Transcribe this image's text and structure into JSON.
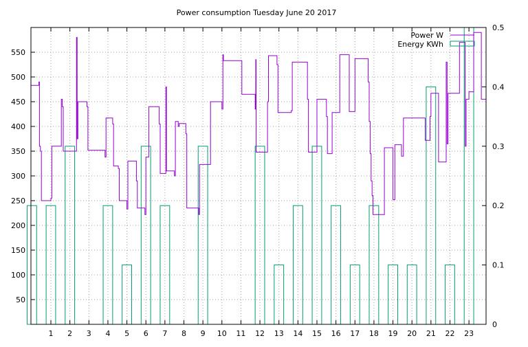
{
  "chart_data": {
    "type": "line",
    "title": "Power consumption Tuesday June 20 2017",
    "xlabel": "",
    "ylabel": "",
    "y2label": "",
    "xlim": [
      -0.05,
      23.9
    ],
    "ylim": [
      0,
      600
    ],
    "y2lim": [
      0,
      0.5
    ],
    "xticks": [
      1,
      2,
      3,
      4,
      5,
      6,
      7,
      8,
      9,
      10,
      11,
      12,
      13,
      14,
      15,
      16,
      17,
      18,
      19,
      20,
      21,
      22,
      23
    ],
    "yticks": [
      50,
      100,
      150,
      200,
      250,
      300,
      350,
      400,
      450,
      500,
      550
    ],
    "y2ticks": [
      0,
      0.1,
      0.2,
      0.3,
      0.4,
      0.5
    ],
    "y2tick_labels": [
      "0",
      "0.1",
      "0.2",
      "0.3",
      "0.4",
      "0.5"
    ],
    "grid": true,
    "legend_position": "top-right",
    "colors": {
      "power": "#9400d3",
      "energy": "#009e73"
    },
    "series": [
      {
        "name": "Power W",
        "axis": "left",
        "style": "steps",
        "points": [
          [
            -0.05,
            483
          ],
          [
            0.35,
            483
          ],
          [
            0.37,
            490
          ],
          [
            0.4,
            360
          ],
          [
            0.45,
            350
          ],
          [
            0.5,
            250
          ],
          [
            0.95,
            250
          ],
          [
            1.0,
            255
          ],
          [
            1.05,
            360
          ],
          [
            1.5,
            360
          ],
          [
            1.55,
            455
          ],
          [
            1.6,
            440
          ],
          [
            1.65,
            350
          ],
          [
            2.3,
            350
          ],
          [
            2.35,
            580
          ],
          [
            2.38,
            375
          ],
          [
            2.42,
            450
          ],
          [
            2.85,
            450
          ],
          [
            2.9,
            440
          ],
          [
            2.95,
            352
          ],
          [
            3.8,
            352
          ],
          [
            3.85,
            338
          ],
          [
            3.9,
            417
          ],
          [
            4.2,
            417
          ],
          [
            4.25,
            405
          ],
          [
            4.3,
            320
          ],
          [
            4.5,
            320
          ],
          [
            4.55,
            315
          ],
          [
            4.6,
            250
          ],
          [
            4.95,
            250
          ],
          [
            5.0,
            233
          ],
          [
            5.05,
            330
          ],
          [
            5.45,
            330
          ],
          [
            5.5,
            290
          ],
          [
            5.55,
            235
          ],
          [
            5.9,
            235
          ],
          [
            5.95,
            222
          ],
          [
            6.0,
            338
          ],
          [
            6.1,
            338
          ],
          [
            6.15,
            440
          ],
          [
            6.65,
            440
          ],
          [
            6.7,
            405
          ],
          [
            6.75,
            305
          ],
          [
            7.0,
            305
          ],
          [
            7.05,
            480
          ],
          [
            7.08,
            310
          ],
          [
            7.45,
            310
          ],
          [
            7.5,
            300
          ],
          [
            7.55,
            410
          ],
          [
            7.65,
            410
          ],
          [
            7.7,
            400
          ],
          [
            7.75,
            406
          ],
          [
            8.05,
            406
          ],
          [
            8.1,
            385
          ],
          [
            8.15,
            235
          ],
          [
            8.75,
            235
          ],
          [
            8.78,
            222
          ],
          [
            8.82,
            323
          ],
          [
            9.35,
            323
          ],
          [
            9.4,
            450
          ],
          [
            9.95,
            450
          ],
          [
            10.0,
            435
          ],
          [
            10.05,
            545
          ],
          [
            10.08,
            533
          ],
          [
            11.0,
            533
          ],
          [
            11.05,
            465
          ],
          [
            11.7,
            465
          ],
          [
            11.75,
            435
          ],
          [
            11.78,
            535
          ],
          [
            11.8,
            348
          ],
          [
            12.35,
            348
          ],
          [
            12.4,
            450
          ],
          [
            12.45,
            543
          ],
          [
            12.85,
            543
          ],
          [
            12.9,
            525
          ],
          [
            12.95,
            428
          ],
          [
            13.6,
            428
          ],
          [
            13.65,
            432
          ],
          [
            13.7,
            530
          ],
          [
            14.45,
            530
          ],
          [
            14.5,
            455
          ],
          [
            14.55,
            348
          ],
          [
            14.95,
            348
          ],
          [
            15.0,
            455
          ],
          [
            15.45,
            455
          ],
          [
            15.5,
            420
          ],
          [
            15.55,
            345
          ],
          [
            15.75,
            345
          ],
          [
            15.8,
            428
          ],
          [
            16.15,
            428
          ],
          [
            16.2,
            545
          ],
          [
            16.65,
            545
          ],
          [
            16.7,
            430
          ],
          [
            16.95,
            430
          ],
          [
            17.0,
            537
          ],
          [
            17.65,
            537
          ],
          [
            17.7,
            490
          ],
          [
            17.75,
            410
          ],
          [
            17.8,
            345
          ],
          [
            17.85,
            290
          ],
          [
            17.9,
            260
          ],
          [
            17.95,
            222
          ],
          [
            18.5,
            222
          ],
          [
            18.55,
            357
          ],
          [
            18.95,
            357
          ],
          [
            19.0,
            252
          ],
          [
            19.1,
            363
          ],
          [
            19.4,
            363
          ],
          [
            19.45,
            340
          ],
          [
            19.55,
            417
          ],
          [
            20.65,
            417
          ],
          [
            20.7,
            372
          ],
          [
            20.9,
            372
          ],
          [
            20.95,
            420
          ],
          [
            21.0,
            467
          ],
          [
            21.35,
            467
          ],
          [
            21.4,
            328
          ],
          [
            21.75,
            328
          ],
          [
            21.8,
            530
          ],
          [
            21.85,
            365
          ],
          [
            21.9,
            467
          ],
          [
            22.45,
            467
          ],
          [
            22.5,
            570
          ],
          [
            22.75,
            570
          ],
          [
            22.8,
            360
          ],
          [
            22.85,
            455
          ],
          [
            22.95,
            455
          ],
          [
            23.0,
            470
          ],
          [
            23.2,
            470
          ],
          [
            23.25,
            590
          ],
          [
            23.6,
            590
          ],
          [
            23.65,
            455
          ],
          [
            23.85,
            455
          ],
          [
            23.9,
            460
          ]
        ]
      },
      {
        "name": "Energy KWh",
        "axis": "right",
        "style": "boxes",
        "boxes": [
          {
            "x": 0,
            "value": 0.2
          },
          {
            "x": 1,
            "value": 0.2
          },
          {
            "x": 2,
            "value": 0.3
          },
          {
            "x": 4,
            "value": 0.2
          },
          {
            "x": 5,
            "value": 0.1
          },
          {
            "x": 6,
            "value": 0.3
          },
          {
            "x": 7,
            "value": 0.2
          },
          {
            "x": 9,
            "value": 0.3
          },
          {
            "x": 12,
            "value": 0.3
          },
          {
            "x": 13,
            "value": 0.1
          },
          {
            "x": 14,
            "value": 0.2
          },
          {
            "x": 15,
            "value": 0.3
          },
          {
            "x": 16,
            "value": 0.2
          },
          {
            "x": 17,
            "value": 0.1
          },
          {
            "x": 18,
            "value": 0.2
          },
          {
            "x": 19,
            "value": 0.1
          },
          {
            "x": 20,
            "value": 0.1
          },
          {
            "x": 21,
            "value": 0.4
          },
          {
            "x": 22,
            "value": 0.1
          },
          {
            "x": 23,
            "value": 0.5
          }
        ]
      }
    ]
  }
}
